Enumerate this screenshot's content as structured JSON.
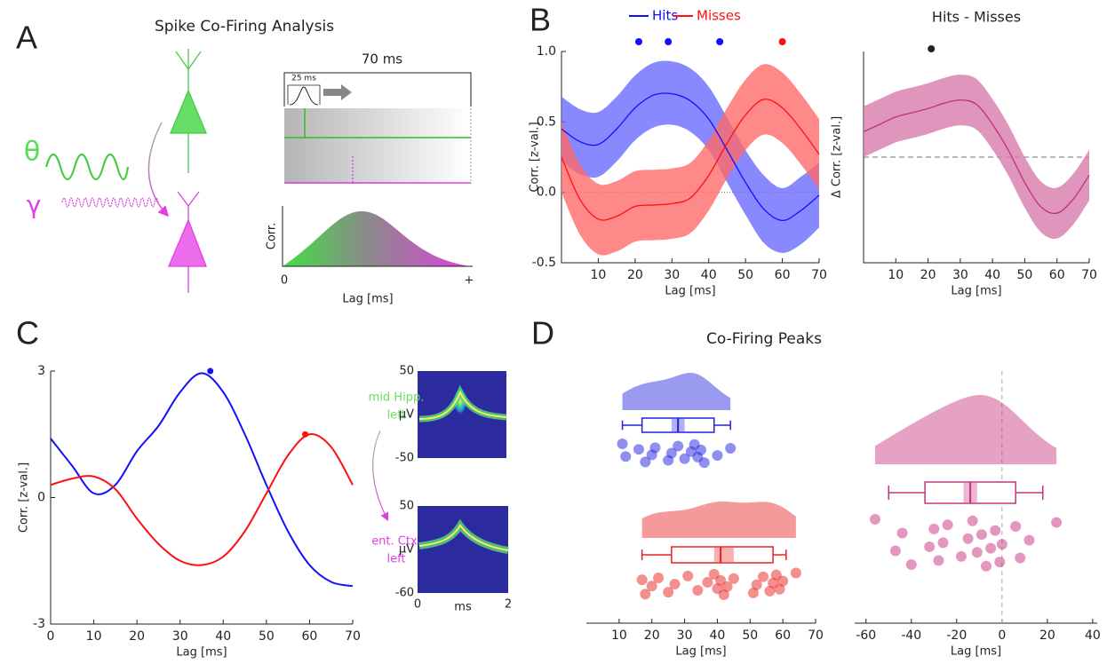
{
  "panel_labels": [
    "A",
    "B",
    "C",
    "D"
  ],
  "schematic": {
    "title": "Spike Co-Firing Analysis",
    "theta": "θ",
    "gamma": "γ",
    "window": "70 ms",
    "kernel": "25 ms",
    "y_label": "Corr.",
    "x_label": "Lag [ms]",
    "x_start": "0",
    "x_end": "+"
  },
  "insets": [
    {
      "label_lines": [
        "mid Hipp.",
        "left"
      ],
      "color": "#66dd66",
      "ylim": [
        -50,
        50
      ],
      "yticks": [
        50,
        -50
      ],
      "ylabel": "µV"
    },
    {
      "label_lines": [
        "ent. Ctx.",
        "left"
      ],
      "color": "#e040e0",
      "ylim": [
        -60,
        50
      ],
      "yticks": [
        50,
        -60
      ],
      "ylabel": "µV",
      "xlim": [
        0,
        2
      ],
      "xticks": [
        0,
        2
      ],
      "xlabel": "ms"
    }
  ],
  "chart_data": [
    {
      "type": "line",
      "xlabel": "Lag [ms]",
      "ylabel": "Corr. [z-val.]",
      "legend": "top",
      "x": [
        0,
        5,
        10,
        15,
        20,
        25,
        30,
        35,
        40,
        45,
        50,
        55,
        60,
        65,
        70
      ],
      "xlim": [
        0,
        70
      ],
      "ylim": [
        -0.5,
        1
      ],
      "xticks": [
        10,
        20,
        30,
        40,
        50,
        60,
        70
      ],
      "yticks": [
        {
          "value": 1,
          "label": "1.0"
        },
        0.5,
        {
          "value": 0,
          "label": "0.0"
        },
        -0.5
      ],
      "hline": 0,
      "series": [
        {
          "name": "Hits",
          "color": "#1010ff",
          "band_color": "#6a6aff",
          "sig_x": [
            21,
            29,
            43
          ],
          "values": [
            0.45,
            0.36,
            0.34,
            0.45,
            0.6,
            0.69,
            0.7,
            0.65,
            0.52,
            0.3,
            0.07,
            -0.12,
            -0.2,
            -0.13,
            -0.02
          ],
          "lower": [
            0.22,
            0.13,
            0.11,
            0.22,
            0.37,
            0.46,
            0.48,
            0.43,
            0.3,
            0.07,
            -0.16,
            -0.36,
            -0.43,
            -0.37,
            -0.25
          ],
          "upper": [
            0.68,
            0.59,
            0.57,
            0.68,
            0.83,
            0.92,
            0.93,
            0.88,
            0.75,
            0.53,
            0.3,
            0.12,
            0.03,
            0.11,
            0.21
          ]
        },
        {
          "name": "Misses",
          "color": "#ff1010",
          "band_color": "#ff6a6a",
          "sig_x": [
            60
          ],
          "values": [
            0.25,
            -0.05,
            -0.19,
            -0.17,
            -0.1,
            -0.09,
            -0.08,
            -0.04,
            0.12,
            0.35,
            0.55,
            0.66,
            0.6,
            0.45,
            0.27
          ],
          "lower": [
            0.0,
            -0.3,
            -0.44,
            -0.42,
            -0.35,
            -0.34,
            -0.33,
            -0.29,
            -0.13,
            0.1,
            0.3,
            0.41,
            0.35,
            0.2,
            0.02
          ],
          "upper": [
            0.5,
            0.2,
            0.06,
            0.08,
            0.15,
            0.16,
            0.17,
            0.21,
            0.37,
            0.6,
            0.8,
            0.91,
            0.85,
            0.7,
            0.52
          ]
        }
      ]
    },
    {
      "type": "line",
      "title": "Hits - Misses",
      "xlabel": "Lag [ms]",
      "ylabel": "Δ Corr. [z-val.]",
      "x": [
        0,
        5,
        10,
        15,
        20,
        25,
        30,
        35,
        40,
        45,
        50,
        55,
        60,
        65,
        70
      ],
      "xlim": [
        0,
        70
      ],
      "ylim": [
        -1,
        1
      ],
      "xticks": [
        10,
        20,
        30,
        40,
        50,
        60,
        70
      ],
      "hline": 0,
      "series": [
        {
          "color": "#c0307a",
          "band_color": "#d77aab",
          "sig_x": [
            21
          ],
          "sig_color": "#222222",
          "values": [
            0.24,
            0.31,
            0.38,
            0.42,
            0.46,
            0.51,
            0.54,
            0.5,
            0.31,
            0.06,
            -0.24,
            -0.47,
            -0.53,
            -0.4,
            -0.17
          ],
          "lower": [
            0.0,
            0.07,
            0.14,
            0.18,
            0.22,
            0.27,
            0.3,
            0.26,
            0.07,
            -0.18,
            -0.48,
            -0.71,
            -0.77,
            -0.64,
            -0.41
          ],
          "upper": [
            0.48,
            0.55,
            0.62,
            0.66,
            0.7,
            0.75,
            0.78,
            0.74,
            0.55,
            0.3,
            0.0,
            -0.23,
            -0.29,
            -0.16,
            0.07
          ]
        }
      ]
    },
    {
      "type": "line",
      "xlabel": "Lag [ms]",
      "ylabel": "Corr. [z-val.]",
      "x": [
        0,
        5,
        10,
        15,
        20,
        25,
        30,
        35,
        40,
        45,
        50,
        55,
        60,
        65,
        70
      ],
      "xlim": [
        0,
        70
      ],
      "ylim": [
        -3,
        3
      ],
      "xticks": [
        0,
        10,
        20,
        30,
        40,
        50,
        60,
        70
      ],
      "yticks": [
        3,
        0,
        -3
      ],
      "series": [
        {
          "color": "#1010ff",
          "peak_x": 37,
          "peak_value": 3.0,
          "values": [
            1.4,
            0.75,
            0.1,
            0.3,
            1.1,
            1.7,
            2.5,
            2.95,
            2.5,
            1.5,
            0.3,
            -0.8,
            -1.6,
            -2.0,
            -2.1
          ]
        },
        {
          "color": "#ff1010",
          "peak_x": 59,
          "peak_value": 1.5,
          "values": [
            0.3,
            0.45,
            0.5,
            0.2,
            -0.5,
            -1.1,
            -1.5,
            -1.6,
            -1.4,
            -0.8,
            0.1,
            1.0,
            1.5,
            1.2,
            0.3
          ]
        }
      ]
    },
    {
      "type": "raincloud",
      "title": "Co-Firing Peaks",
      "xlabel": "Lag [ms]",
      "xlim": [
        0,
        70
      ],
      "xticks": [
        10,
        20,
        30,
        40,
        50,
        60,
        70
      ],
      "series": [
        {
          "color": "#2020e0",
          "points": [
            11,
            12,
            16,
            18,
            20,
            21,
            25,
            26,
            28,
            30,
            32,
            33,
            34,
            35,
            36,
            40,
            44
          ],
          "box": {
            "whisker_low": 11,
            "q1": 17,
            "median": 28,
            "q3": 39,
            "whisker_high": 44,
            "median_ci": [
              26,
              30
            ]
          }
        },
        {
          "color": "#e82020",
          "points": [
            17,
            18,
            20,
            22,
            25,
            27,
            31,
            34,
            37,
            39,
            40,
            41,
            42,
            43,
            45,
            51,
            52,
            54,
            56,
            57,
            58,
            59,
            60,
            64
          ],
          "box": {
            "whisker_low": 17,
            "q1": 26,
            "median": 41,
            "q3": 57,
            "whisker_high": 61,
            "median_ci": [
              39,
              45
            ]
          }
        }
      ]
    },
    {
      "type": "raincloud",
      "xlabel": "Lag [ms]",
      "xlim": [
        -65,
        42
      ],
      "xticks": [
        -60,
        -40,
        -20,
        0,
        20,
        40
      ],
      "vline": 0,
      "series": [
        {
          "color": "#c8307f",
          "points": [
            -56,
            -47,
            -44,
            -40,
            -32,
            -30,
            -28,
            -26,
            -24,
            -18,
            -15,
            -13,
            -11,
            -9,
            -7,
            -5,
            -3,
            -1,
            0,
            6,
            8,
            12,
            24
          ],
          "box": {
            "whisker_low": -50,
            "q1": -34,
            "median": -14,
            "q3": 6,
            "whisker_high": 18,
            "median_ci": [
              -17,
              -11
            ]
          }
        }
      ]
    }
  ]
}
